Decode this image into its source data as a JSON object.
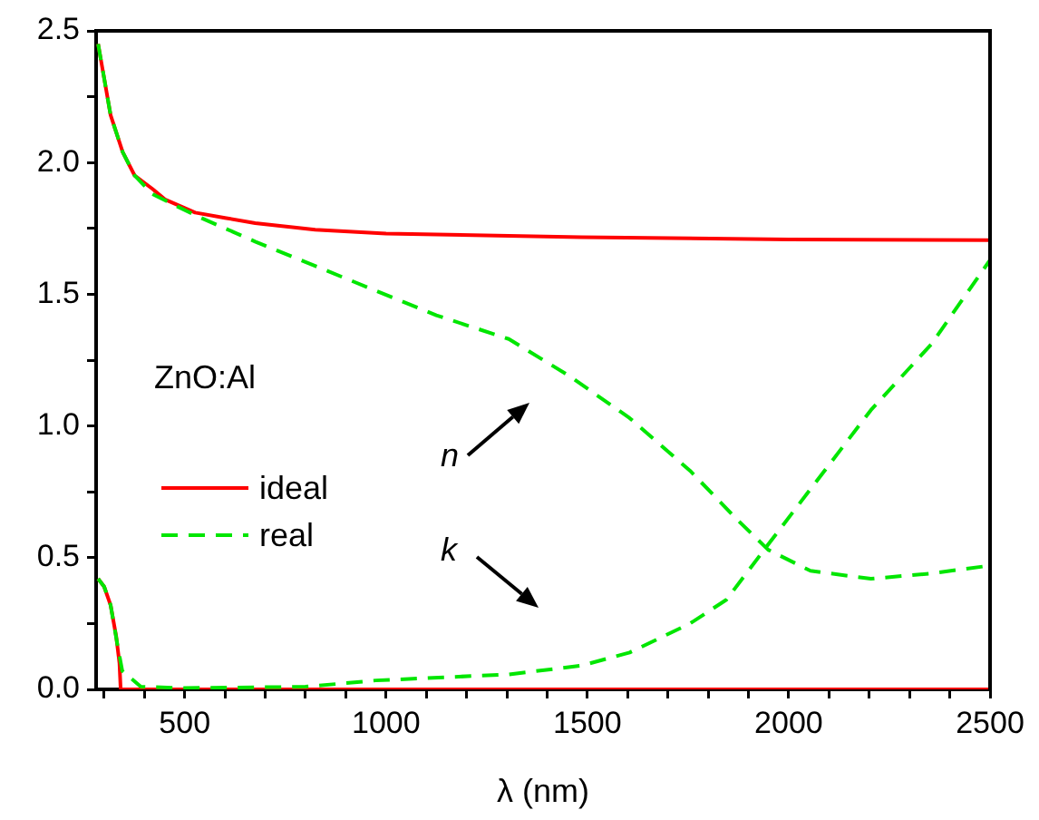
{
  "chart_data": {
    "type": "line",
    "xlabel": "λ (nm)",
    "xlim": [
      280,
      2500
    ],
    "ylim": [
      0,
      2.5
    ],
    "xticks": [
      {
        "value": 300,
        "label": null
      },
      {
        "value": 400,
        "label": null
      },
      500,
      {
        "value": 600,
        "label": null
      },
      {
        "value": 700,
        "label": null
      },
      {
        "value": 800,
        "label": null
      },
      {
        "value": 900,
        "label": null
      },
      1000,
      {
        "value": 1100,
        "label": null
      },
      {
        "value": 1200,
        "label": null
      },
      {
        "value": 1300,
        "label": null
      },
      {
        "value": 1400,
        "label": null
      },
      1500,
      {
        "value": 1600,
        "label": null
      },
      {
        "value": 1700,
        "label": null
      },
      {
        "value": 1800,
        "label": null
      },
      {
        "value": 1900,
        "label": null
      },
      2000,
      {
        "value": 2100,
        "label": null
      },
      {
        "value": 2200,
        "label": null
      },
      {
        "value": 2300,
        "label": null
      },
      {
        "value": 2400,
        "label": null
      },
      2500
    ],
    "yticks": [
      {
        "value": 0,
        "label": "0.0"
      },
      {
        "value": 0.25,
        "label": null
      },
      0.5,
      {
        "value": 0.75,
        "label": null
      },
      {
        "value": 1,
        "label": "1.0"
      },
      {
        "value": 1.25,
        "label": null
      },
      1.5,
      {
        "value": 1.75,
        "label": null
      },
      {
        "value": 2,
        "label": "2.0"
      },
      {
        "value": 2.25,
        "label": null
      },
      2.5
    ],
    "grid": false,
    "legend": "left",
    "marker": "none",
    "series": [
      {
        "name": "ideal",
        "color": "#ff0000",
        "line_style": "solid",
        "x": [
          285,
          300,
          316,
          346,
          376,
          420,
          451,
          526,
          600,
          675,
          824,
          1000,
          1125,
          1485,
          2000,
          2500
        ],
        "values": [
          2.45,
          2.32,
          2.18,
          2.04,
          1.95,
          1.9,
          1.86,
          1.81,
          1.79,
          1.77,
          1.745,
          1.73,
          1.727,
          1.717,
          1.708,
          1.705
        ]
      },
      {
        "color": "#ff0000",
        "line_style": "solid",
        "x": [
          285,
          300,
          316,
          330,
          338,
          341,
          2500
        ],
        "values": [
          0.42,
          0.39,
          0.32,
          0.2,
          0.1,
          0,
          0
        ]
      },
      {
        "name": "real",
        "color": "#00e600",
        "line_style": "dashed",
        "x": [
          285,
          300,
          316,
          346,
          376,
          420,
          526,
          675,
          900,
          1125,
          1305,
          1455,
          1605,
          1755,
          1875,
          1949,
          2054,
          2204,
          2353,
          2500
        ],
        "values": [
          2.45,
          2.32,
          2.18,
          2.04,
          1.95,
          1.88,
          1.8,
          1.7,
          1.56,
          1.42,
          1.33,
          1.19,
          1.03,
          0.83,
          0.64,
          0.53,
          0.45,
          0.42,
          0.44,
          0.47
        ]
      },
      {
        "color": "#00e600",
        "line_style": "dashed",
        "x": [
          285,
          300,
          316,
          334,
          345,
          391,
          500,
          800,
          975,
          1305,
          1485,
          1605,
          1755,
          1845,
          1949,
          2054,
          2204,
          2354,
          2500
        ],
        "values": [
          0.42,
          0.39,
          0.32,
          0.16,
          0.07,
          0.01,
          0.005,
          0.01,
          0.034,
          0.057,
          0.09,
          0.14,
          0.25,
          0.34,
          0.55,
          0.76,
          1.06,
          1.31,
          1.63
        ]
      }
    ],
    "annotations": [
      "ZnO:Al",
      "n",
      "k"
    ]
  }
}
